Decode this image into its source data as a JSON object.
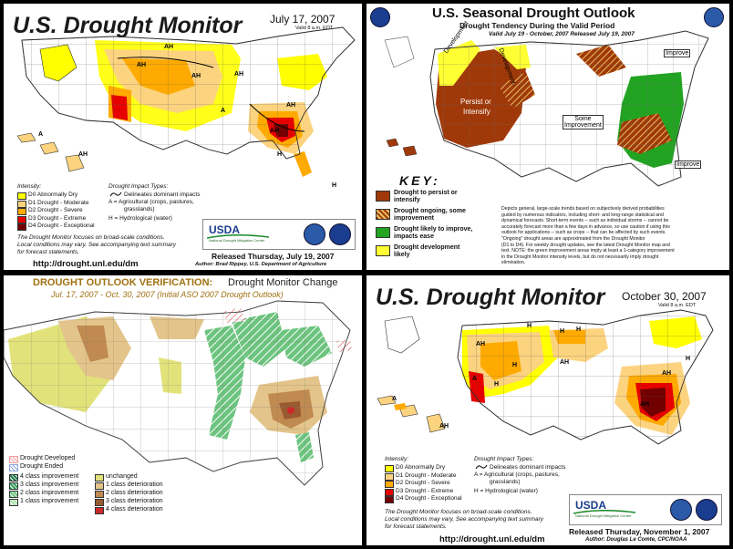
{
  "panel1": {
    "title": "U.S. Drought Monitor",
    "date": "July 17, 2007",
    "valid": "Valid 8 a.m. EDT",
    "intensity_heading": "Intensity:",
    "intensity": [
      {
        "label": "D0 Abnormally Dry",
        "color": "#ffff00"
      },
      {
        "label": "D1 Drought - Moderate",
        "color": "#fcd37f"
      },
      {
        "label": "D2 Drought - Severe",
        "color": "#ffaa00"
      },
      {
        "label": "D3 Drought - Extreme",
        "color": "#e60000"
      },
      {
        "label": "D4 Drought - Exceptional",
        "color": "#730000"
      }
    ],
    "impact_heading": "Drought Impact Types:",
    "impact_1": "Delineates dominant impacts",
    "impact_2": "A = Agricultural (crops, pastures,",
    "impact_2b": "grasslands)",
    "impact_3": "H = Hydrological (water)",
    "note_1": "The Drought Monitor focuses on broad-scale conditions.",
    "note_2": "Local conditions may vary. See accompanying text summary",
    "note_3": "for forecast statements.",
    "usda": "USDA",
    "logo_caption": "National Drought Mitigation Center",
    "released": "Released Thursday, July 19, 2007",
    "author": "Author: Brad Rippey, U.S. Department of Agriculture",
    "url": "http://drought.unl.edu/dm",
    "map_labels": {
      "a": "A",
      "h": "H",
      "ah": "AH"
    }
  },
  "panel2": {
    "title": "U.S. Seasonal Drought Outlook",
    "subtitle": "Drought Tendency During the Valid Period",
    "valid": "Valid July 19 - October, 2007    Released July 19, 2007",
    "key_heading": "KEY:",
    "key": [
      {
        "label": "Drought to persist or",
        "label2": "intensify",
        "color": "#a0390a",
        "hatch": false
      },
      {
        "label": "Drought ongoing, some",
        "label2": "improvement",
        "color": "#a0390a",
        "hatch": true
      },
      {
        "label": "Drought likely to improve,",
        "label2": "impacts ease",
        "color": "#22a322",
        "hatch": false
      },
      {
        "label": "Drought development",
        "label2": "likely",
        "color": "#ffff33",
        "hatch": false
      }
    ],
    "text_lines": [
      "Depicts general, large-scale trends based on subjectively derived probabilities",
      "guided by numerous indicators, including short- and long-range statistical and",
      "dynamical forecasts. Short-term events -- such as individual storms -- cannot be",
      "accurately forecast more than a few days in advance, so use caution if using this",
      "outlook for applications -- such as crops -- that can be affected by such events.",
      "\"Ongoing\" drought areas are approximated from the Drought Monitor",
      "(D1 to D4). For weekly drought updates, see the latest Drought Monitor map and",
      "text. NOTE: the green improvement areas imply at least a 1-category improvement",
      "in the Drought Monitor intensity levels, but do not necessarily imply drought",
      "elimination."
    ],
    "labels": {
      "development_1": "Development",
      "development_2": "Development",
      "persist": "Persist or",
      "persist2": "Intensify",
      "some": "Some",
      "some2": "Improvement",
      "improve_1": "Improve",
      "improve_2": "Improve"
    }
  },
  "panel3": {
    "title_a": "DROUGHT OUTLOOK VERIFICATION:",
    "title_b": "Drought Monitor Change",
    "subtitle": "Jul. 17, 2007 - Oct. 30, 2007 (Initial ASO 2007 Drought Outlook)",
    "legend_top": [
      {
        "label": "Drought Developed",
        "color": "#f4a0a0"
      },
      {
        "label": "Drought Ended",
        "color": "#8fa8e0"
      }
    ],
    "legend_left": [
      {
        "label": "4 class improvement",
        "color": "#1f7a4a"
      },
      {
        "label": "3 class improvement",
        "color": "#34a05c"
      },
      {
        "label": "2 class improvement",
        "color": "#6cc47e"
      },
      {
        "label": "1 class improvement",
        "color": "#a8e0a8"
      }
    ],
    "legend_right": [
      {
        "label": "unchanged",
        "color": "#e2e27a"
      },
      {
        "label": "1 class deterioration",
        "color": "#e3c48a"
      },
      {
        "label": "2 class deterioration",
        "color": "#c08a50"
      },
      {
        "label": "3 class deterioration",
        "color": "#9a5a30"
      },
      {
        "label": "4 class deterioration",
        "color": "#cc2a2a"
      }
    ]
  },
  "panel4": {
    "title": "U.S. Drought Monitor",
    "date": "October 30, 2007",
    "valid": "Valid 8 a.m. EDT",
    "intensity_heading": "Intensity:",
    "intensity": [
      {
        "label": "D0 Abnormally Dry",
        "color": "#ffff00"
      },
      {
        "label": "D1 Drought - Moderate",
        "color": "#fcd37f"
      },
      {
        "label": "D2 Drought - Severe",
        "color": "#ffaa00"
      },
      {
        "label": "D3 Drought - Extreme",
        "color": "#e60000"
      },
      {
        "label": "D4 Drought - Exceptional",
        "color": "#730000"
      }
    ],
    "impact_heading": "Drought Impact Types:",
    "impact_1": "Delineates dominant impacts",
    "impact_2": "A = Agricultural (crops, pastures,",
    "impact_2b": "grasslands)",
    "impact_3": "H = Hydrological (water)",
    "note_1": "The Drought Monitor focuses on broad-scale conditions.",
    "note_2": "Local conditions may vary. See accompanying text summary",
    "note_3": "for forecast statements.",
    "usda": "USDA",
    "logo_caption": "National Drought Mitigation Center",
    "released": "Released Thursday, November 1, 2007",
    "author": "Author:  Douglas Le Comte, CPC/NOAA",
    "url": "http://drought.unl.edu/dm",
    "map_labels": {
      "a": "A",
      "h": "H",
      "ah": "AH"
    }
  }
}
